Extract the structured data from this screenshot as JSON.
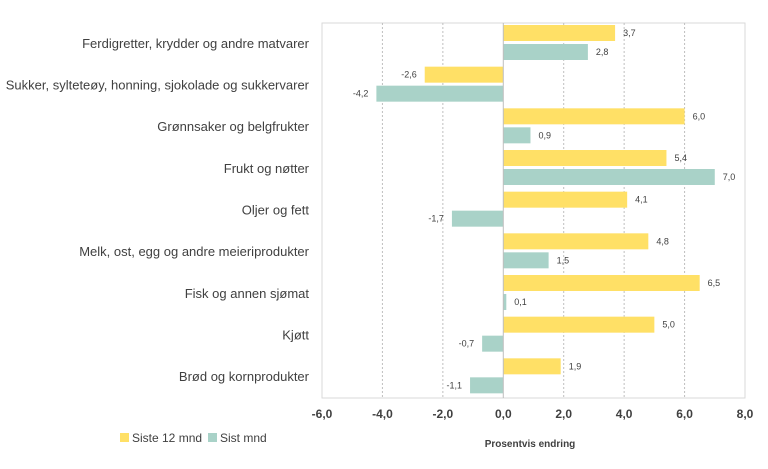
{
  "chart_data": {
    "type": "bar",
    "orientation": "horizontal",
    "categories": [
      "Ferdigretter, krydder og andre matvarer",
      "Sukker, sylteteøy, honning, sjokolade og sukkervarer",
      "Grønnsaker og belgfrukter",
      "Frukt og nøtter",
      "Oljer og fett",
      "Melk, ost, egg og andre meieriprodukter",
      "Fisk og annen sjømat",
      "Kjøtt",
      "Brød og kornprodukter"
    ],
    "series": [
      {
        "name": "Siste 12 mnd",
        "color": "#FFE066",
        "values": [
          3.7,
          -2.6,
          6.0,
          5.4,
          4.1,
          4.8,
          6.5,
          5.0,
          1.9
        ],
        "labels": [
          "3,7",
          "-2,6",
          "6,0",
          "5,4",
          "4,1",
          "4,8",
          "6,5",
          "5,0",
          "1,9"
        ]
      },
      {
        "name": "Sist mnd",
        "color": "#A9D2C8",
        "values": [
          2.8,
          -4.2,
          0.9,
          7.0,
          -1.7,
          1.5,
          0.1,
          -0.7,
          -1.1
        ],
        "labels": [
          "2,8",
          "-4,2",
          "0,9",
          "7,0",
          "-1,7",
          "1,5",
          "0,1",
          "-0,7",
          "-1,1"
        ]
      }
    ],
    "xlim": [
      -6.0,
      8.0
    ],
    "xticks": [
      -6,
      -4,
      -2,
      0,
      2,
      4,
      6,
      8
    ],
    "xtick_labels": [
      "-6,0",
      "-4,0",
      "-2,0",
      "0,0",
      "2,0",
      "4,0",
      "6,0",
      "8,0"
    ],
    "xlabel": "Prosentvis endring",
    "grid": "vertical-dotted",
    "legend_position": "bottom-left"
  }
}
